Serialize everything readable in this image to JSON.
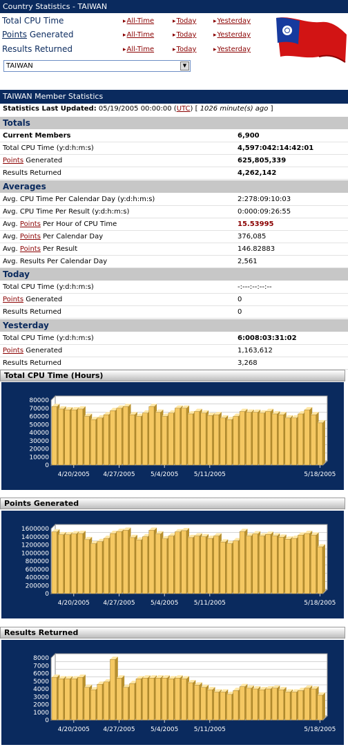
{
  "header": {
    "title": "Country Statistics - TAIWAN",
    "nav_rows": [
      {
        "label_prefix": "",
        "label_link": "",
        "label_plain": "Total CPU Time",
        "links": [
          "All-Time",
          "Today",
          "Yesterday"
        ]
      },
      {
        "label_prefix": "",
        "label_link": "Points",
        "label_plain": " Generated",
        "links": [
          "All-Time",
          "Today",
          "Yesterday"
        ]
      },
      {
        "label_prefix": "",
        "label_link": "",
        "label_plain": "Results Returned",
        "links": [
          "All-Time",
          "Today",
          "Yesterday"
        ]
      }
    ],
    "country_select": "TAIWAN"
  },
  "member_stats": {
    "title": "TAIWAN Member Statistics",
    "updated_label": "Statistics Last Updated:",
    "updated_value": " 05/19/2005 00:00:00 (",
    "utc": "UTC",
    "updated_tail": ") [",
    "ago": " 1026 minute(s) ago ",
    "close": "]"
  },
  "sections": {
    "totals": {
      "title": "Totals",
      "rows": [
        {
          "label": "Current Members",
          "value": "6,900"
        },
        {
          "label": "Total CPU Time (y:d:h:m:s)",
          "value": "4,597:042:14:42:01"
        },
        {
          "link": "Points",
          "label": " Generated",
          "value": "625,805,339"
        },
        {
          "label": "Results Returned",
          "value": "4,262,142"
        }
      ]
    },
    "averages": {
      "title": "Averages",
      "rows": [
        {
          "label": "Avg. CPU Time Per Calendar Day (y:d:h:m:s)",
          "value": "2:278:09:10:03"
        },
        {
          "label": "Avg. CPU Time Per Result (y:d:h:m:s)",
          "value": "0:000:09:26:55"
        },
        {
          "pre": "Avg. ",
          "link": "Points",
          "label": " Per Hour of CPU Time",
          "value": "15.53995"
        },
        {
          "pre": "Avg. ",
          "link": "Points",
          "label": " Per Calendar Day",
          "value": "376,085"
        },
        {
          "pre": "Avg. ",
          "link": "Points",
          "label": " Per Result",
          "value": "146.82883"
        },
        {
          "label": "Avg. Results Per Calendar Day",
          "value": "2,561"
        }
      ]
    },
    "today": {
      "title": "Today",
      "rows": [
        {
          "label": "Total CPU Time (y:d:h:m:s)",
          "value": "-:---:--:--:--"
        },
        {
          "link": "Points",
          "label": " Generated",
          "value": "0"
        },
        {
          "label": "Results Returned",
          "value": "0"
        }
      ]
    },
    "yesterday": {
      "title": "Yesterday",
      "rows": [
        {
          "label": "Total CPU Time (y:d:h:m:s)",
          "value": "6:008:03:31:02"
        },
        {
          "link": "Points",
          "label": " Generated",
          "value": "1,163,612"
        },
        {
          "label": "Results Returned",
          "value": "3,268"
        }
      ]
    }
  },
  "chart_data": [
    {
      "type": "bar",
      "title": "Total CPU Time (Hours)",
      "x_labels": [
        "4/20/2005",
        "4/27/2005",
        "5/4/2005",
        "5/11/2005",
        "5/18/2005"
      ],
      "ylim": [
        0,
        80000
      ],
      "yticks": [
        "80000",
        "70000",
        "60000",
        "50000",
        "40000",
        "30000",
        "20000",
        "10000",
        "0"
      ],
      "values": [
        72000,
        69000,
        68000,
        68000,
        69000,
        60000,
        56000,
        58000,
        62000,
        67000,
        70000,
        72000,
        62000,
        60000,
        64000,
        72000,
        65000,
        60000,
        64000,
        70000,
        70000,
        63000,
        66000,
        64000,
        61000,
        62000,
        58000,
        56000,
        60000,
        66000,
        65000,
        65000,
        64000,
        66000,
        63000,
        62000,
        58000,
        58000,
        63000,
        68000,
        62000,
        52000
      ]
    },
    {
      "type": "bar",
      "title": "Points Generated",
      "x_labels": [
        "4/20/2005",
        "4/27/2005",
        "5/4/2005",
        "5/11/2005",
        "5/18/2005"
      ],
      "ylim": [
        0,
        1600000
      ],
      "yticks": [
        "1600000",
        "1400000",
        "1200000",
        "1000000",
        "800000",
        "600000",
        "400000",
        "200000",
        "0"
      ],
      "values": [
        1520000,
        1450000,
        1450000,
        1470000,
        1480000,
        1330000,
        1230000,
        1280000,
        1360000,
        1480000,
        1530000,
        1560000,
        1380000,
        1320000,
        1400000,
        1560000,
        1470000,
        1350000,
        1420000,
        1520000,
        1550000,
        1380000,
        1420000,
        1400000,
        1360000,
        1420000,
        1270000,
        1230000,
        1300000,
        1530000,
        1420000,
        1470000,
        1420000,
        1460000,
        1420000,
        1390000,
        1340000,
        1360000,
        1440000,
        1480000,
        1440000,
        1150000
      ]
    },
    {
      "type": "bar",
      "title": "Results Returned",
      "x_labels": [
        "4/20/2005",
        "4/27/2005",
        "5/4/2005",
        "5/11/2005",
        "5/18/2005"
      ],
      "ylim": [
        0,
        8000
      ],
      "yticks": [
        "8000",
        "7000",
        "6000",
        "5000",
        "4000",
        "3000",
        "2000",
        "1000",
        "0"
      ],
      "values": [
        5500,
        5300,
        5300,
        5300,
        5500,
        4200,
        3900,
        4600,
        4900,
        7800,
        5400,
        4200,
        4700,
        5300,
        5400,
        5400,
        5400,
        5400,
        5300,
        5400,
        5300,
        4800,
        4500,
        4200,
        3900,
        3600,
        3600,
        3300,
        3800,
        4300,
        4100,
        4000,
        3900,
        4000,
        4100,
        3900,
        3600,
        3600,
        3800,
        4100,
        4000,
        3200
      ]
    }
  ]
}
